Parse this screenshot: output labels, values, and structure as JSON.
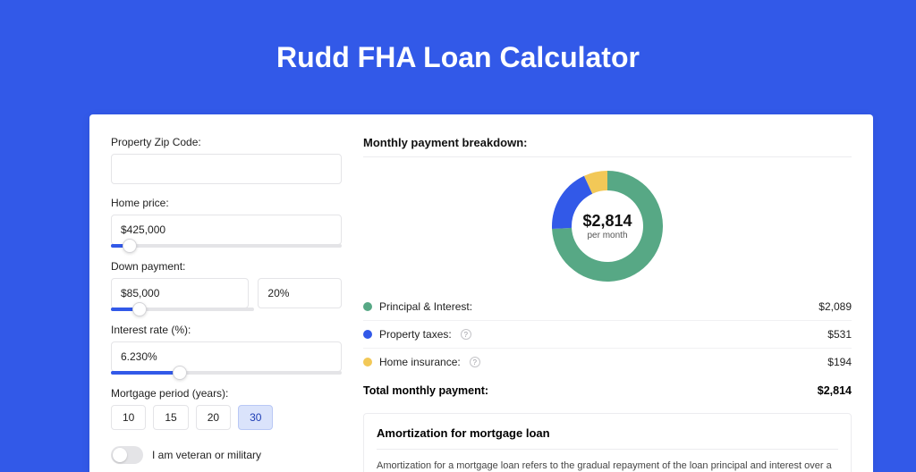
{
  "header": {
    "title": "Rudd FHA Loan Calculator"
  },
  "colors": {
    "page_bg": "#3259e8",
    "card_bg": "#ffffff",
    "border": "#e4e4e7",
    "slider_fill": "#3259e8",
    "pill_active_bg": "#dae3fb",
    "pill_active_border": "#b9c8f5"
  },
  "form": {
    "zip": {
      "label": "Property Zip Code:",
      "value": ""
    },
    "home_price": {
      "label": "Home price:",
      "value": "$425,000",
      "slider_pct": 8
    },
    "down_payment": {
      "label": "Down payment:",
      "amount": "$85,000",
      "percent": "20%",
      "slider_pct": 20
    },
    "interest_rate": {
      "label": "Interest rate (%):",
      "value": "6.230%",
      "slider_pct": 30
    },
    "mortgage_period": {
      "label": "Mortgage period (years):",
      "options": [
        "10",
        "15",
        "20",
        "30"
      ],
      "selected": "30"
    },
    "veteran": {
      "label": "I am veteran or military",
      "checked": false
    }
  },
  "breakdown": {
    "title": "Monthly payment breakdown:",
    "center_value": "$2,814",
    "center_sub": "per month",
    "donut": {
      "segments": [
        {
          "key": "principal_interest",
          "color": "#57a885",
          "value": 2089
        },
        {
          "key": "property_taxes",
          "color": "#3259e8",
          "value": 531
        },
        {
          "key": "home_insurance",
          "color": "#f2c857",
          "value": 194
        }
      ],
      "thickness": 22
    },
    "rows": [
      {
        "dot_color": "#57a885",
        "label": "Principal & Interest:",
        "info": false,
        "value": "$2,089"
      },
      {
        "dot_color": "#3259e8",
        "label": "Property taxes:",
        "info": true,
        "value": "$531"
      },
      {
        "dot_color": "#f2c857",
        "label": "Home insurance:",
        "info": true,
        "value": "$194"
      }
    ],
    "total_label": "Total monthly payment:",
    "total_value": "$2,814"
  },
  "amortization": {
    "title": "Amortization for mortgage loan",
    "body": "Amortization for a mortgage loan refers to the gradual repayment of the loan principal and interest over a specified"
  }
}
